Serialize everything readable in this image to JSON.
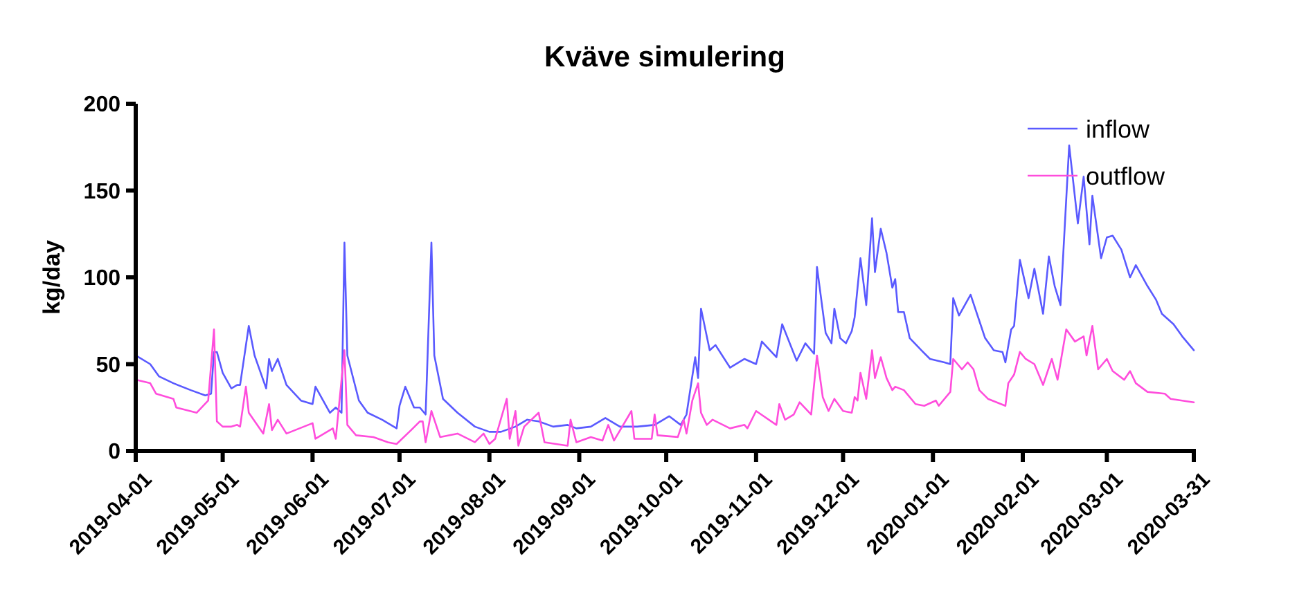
{
  "chart_data": {
    "type": "line",
    "title": "Kväve simulering",
    "ylabel": "kg/day",
    "xlim": [
      "2019-04-01",
      "2020-03-31"
    ],
    "xticks": [
      "2019-04-01",
      "2019-05-01",
      "2019-06-01",
      "2019-07-01",
      "2019-08-01",
      "2019-09-01",
      "2019-10-01",
      "2019-11-01",
      "2019-12-01",
      "2020-01-01",
      "2020-02-01",
      "2020-03-01",
      "2020-03-31"
    ],
    "ylim": [
      0,
      200
    ],
    "yticks": [
      0,
      50,
      100,
      150,
      200
    ],
    "grid": false,
    "legend": "top right",
    "marker": "none",
    "line_style": "solid",
    "series": [
      {
        "name": "inflow",
        "color": "#5a5aff",
        "x": [
          "2019-04-01",
          "2019-04-06",
          "2019-04-09",
          "2019-04-14",
          "2019-04-20",
          "2019-04-25",
          "2019-04-27",
          "2019-04-28",
          "2019-04-29",
          "2019-05-01",
          "2019-05-04",
          "2019-05-06",
          "2019-05-07",
          "2019-05-10",
          "2019-05-12",
          "2019-05-16",
          "2019-05-17",
          "2019-05-18",
          "2019-05-20",
          "2019-05-23",
          "2019-05-28",
          "2019-06-01",
          "2019-06-02",
          "2019-06-07",
          "2019-06-09",
          "2019-06-11",
          "2019-06-12",
          "2019-06-13",
          "2019-06-17",
          "2019-06-20",
          "2019-06-25",
          "2019-06-30",
          "2019-07-01",
          "2019-07-03",
          "2019-07-06",
          "2019-07-08",
          "2019-07-10",
          "2019-07-12",
          "2019-07-13",
          "2019-07-16",
          "2019-07-21",
          "2019-07-27",
          "2019-08-01",
          "2019-08-05",
          "2019-08-10",
          "2019-08-14",
          "2019-08-18",
          "2019-08-23",
          "2019-08-28",
          "2019-08-31",
          "2019-09-05",
          "2019-09-10",
          "2019-09-15",
          "2019-09-21",
          "2019-09-27",
          "2019-10-02",
          "2019-10-06",
          "2019-10-08",
          "2019-10-11",
          "2019-10-12",
          "2019-10-13",
          "2019-10-16",
          "2019-10-18",
          "2019-10-23",
          "2019-10-28",
          "2019-11-01",
          "2019-11-03",
          "2019-11-08",
          "2019-11-10",
          "2019-11-15",
          "2019-11-18",
          "2019-11-21",
          "2019-11-22",
          "2019-11-25",
          "2019-11-27",
          "2019-11-28",
          "2019-11-30",
          "2019-12-02",
          "2019-12-04",
          "2019-12-05",
          "2019-12-07",
          "2019-12-09",
          "2019-12-11",
          "2019-12-12",
          "2019-12-14",
          "2019-12-16",
          "2019-12-18",
          "2019-12-19",
          "2019-12-20",
          "2019-12-22",
          "2019-12-24",
          "2019-12-28",
          "2019-12-31",
          "2020-01-05",
          "2020-01-07",
          "2020-01-08",
          "2020-01-10",
          "2020-01-14",
          "2020-01-17",
          "2020-01-19",
          "2020-01-22",
          "2020-01-25",
          "2020-01-26",
          "2020-01-28",
          "2020-01-29",
          "2020-01-31",
          "2020-02-03",
          "2020-02-05",
          "2020-02-08",
          "2020-02-10",
          "2020-02-12",
          "2020-02-14",
          "2020-02-17",
          "2020-02-20",
          "2020-02-22",
          "2020-02-24",
          "2020-02-25",
          "2020-02-28",
          "2020-03-01",
          "2020-03-03",
          "2020-03-06",
          "2020-03-09",
          "2020-03-11",
          "2020-03-15",
          "2020-03-18",
          "2020-03-20",
          "2020-03-24",
          "2020-03-27",
          "2020-03-31"
        ],
        "values": [
          55,
          50,
          43,
          39,
          35,
          32,
          33,
          57,
          57,
          45,
          36,
          38,
          38,
          72,
          55,
          36,
          53,
          46,
          53,
          38,
          29,
          27,
          37,
          22,
          25,
          22,
          120,
          55,
          29,
          22,
          18,
          13,
          26,
          37,
          25,
          25,
          21,
          120,
          55,
          30,
          22,
          14,
          11,
          11,
          14,
          18,
          17,
          14,
          15,
          13,
          14,
          19,
          14,
          14,
          15,
          20,
          15,
          21,
          54,
          42,
          82,
          58,
          61,
          48,
          53,
          50,
          63,
          54,
          73,
          52,
          62,
          56,
          106,
          68,
          62,
          82,
          65,
          62,
          69,
          77,
          111,
          84,
          134,
          103,
          128,
          114,
          94,
          99,
          80,
          80,
          65,
          58,
          53,
          51,
          50,
          88,
          78,
          90,
          75,
          65,
          58,
          57,
          51,
          70,
          72,
          110,
          88,
          105,
          79,
          112,
          95,
          84,
          176,
          131,
          158,
          119,
          147,
          111,
          123,
          124,
          116,
          100,
          107,
          95,
          87,
          79,
          73,
          66,
          58
        ]
      },
      {
        "name": "outflow",
        "color": "#ff4ddc",
        "x": [
          "2019-04-01",
          "2019-04-06",
          "2019-04-08",
          "2019-04-14",
          "2019-04-15",
          "2019-04-22",
          "2019-04-26",
          "2019-04-28",
          "2019-04-29",
          "2019-05-01",
          "2019-05-04",
          "2019-05-06",
          "2019-05-07",
          "2019-05-09",
          "2019-05-10",
          "2019-05-15",
          "2019-05-17",
          "2019-05-18",
          "2019-05-20",
          "2019-05-23",
          "2019-06-01",
          "2019-06-02",
          "2019-06-08",
          "2019-06-09",
          "2019-06-12",
          "2019-06-13",
          "2019-06-16",
          "2019-06-22",
          "2019-06-27",
          "2019-06-30",
          "2019-07-05",
          "2019-07-08",
          "2019-07-09",
          "2019-07-10",
          "2019-07-12",
          "2019-07-15",
          "2019-07-21",
          "2019-07-27",
          "2019-07-30",
          "2019-08-01",
          "2019-08-03",
          "2019-08-07",
          "2019-08-08",
          "2019-08-10",
          "2019-08-11",
          "2019-08-13",
          "2019-08-18",
          "2019-08-20",
          "2019-08-28",
          "2019-08-29",
          "2019-08-31",
          "2019-09-05",
          "2019-09-09",
          "2019-09-11",
          "2019-09-13",
          "2019-09-19",
          "2019-09-20",
          "2019-09-26",
          "2019-09-27",
          "2019-09-28",
          "2019-10-05",
          "2019-10-07",
          "2019-10-08",
          "2019-10-10",
          "2019-10-12",
          "2019-10-13",
          "2019-10-15",
          "2019-10-17",
          "2019-10-23",
          "2019-10-28",
          "2019-10-29",
          "2019-11-01",
          "2019-11-08",
          "2019-11-09",
          "2019-11-11",
          "2019-11-14",
          "2019-11-16",
          "2019-11-20",
          "2019-11-22",
          "2019-11-24",
          "2019-11-26",
          "2019-11-28",
          "2019-12-01",
          "2019-12-04",
          "2019-12-05",
          "2019-12-06",
          "2019-12-07",
          "2019-12-09",
          "2019-12-11",
          "2019-12-12",
          "2019-12-14",
          "2019-12-16",
          "2019-12-18",
          "2019-12-19",
          "2019-12-22",
          "2019-12-26",
          "2019-12-29",
          "2020-01-02",
          "2020-01-03",
          "2020-01-07",
          "2020-01-08",
          "2020-01-11",
          "2020-01-13",
          "2020-01-15",
          "2020-01-17",
          "2020-01-20",
          "2020-01-26",
          "2020-01-27",
          "2020-01-29",
          "2020-01-31",
          "2020-02-02",
          "2020-02-05",
          "2020-02-08",
          "2020-02-11",
          "2020-02-13",
          "2020-02-16",
          "2020-02-19",
          "2020-02-22",
          "2020-02-23",
          "2020-02-25",
          "2020-02-27",
          "2020-03-01",
          "2020-03-03",
          "2020-03-07",
          "2020-03-09",
          "2020-03-11",
          "2020-03-15",
          "2020-03-21",
          "2020-03-23",
          "2020-03-31"
        ],
        "values": [
          41,
          39,
          33,
          30,
          25,
          22,
          29,
          70,
          17,
          14,
          14,
          15,
          14,
          37,
          22,
          10,
          27,
          12,
          18,
          10,
          16,
          7,
          13,
          7,
          58,
          15,
          9,
          8,
          5,
          4,
          12,
          17,
          17,
          5,
          23,
          8,
          10,
          5,
          10,
          4,
          7,
          30,
          7,
          23,
          3,
          14,
          22,
          5,
          3,
          18,
          5,
          8,
          6,
          15,
          6,
          23,
          7,
          7,
          21,
          9,
          8,
          18,
          10,
          29,
          39,
          22,
          15,
          18,
          13,
          15,
          13,
          23,
          15,
          27,
          18,
          21,
          28,
          21,
          55,
          31,
          23,
          30,
          23,
          22,
          31,
          29,
          45,
          30,
          58,
          42,
          54,
          42,
          35,
          37,
          35,
          27,
          26,
          29,
          26,
          34,
          53,
          47,
          51,
          47,
          35,
          30,
          26,
          39,
          44,
          57,
          53,
          50,
          38,
          53,
          41,
          70,
          63,
          66,
          55,
          72,
          47,
          53,
          46,
          41,
          46,
          39,
          34,
          33,
          30,
          28
        ]
      }
    ]
  }
}
